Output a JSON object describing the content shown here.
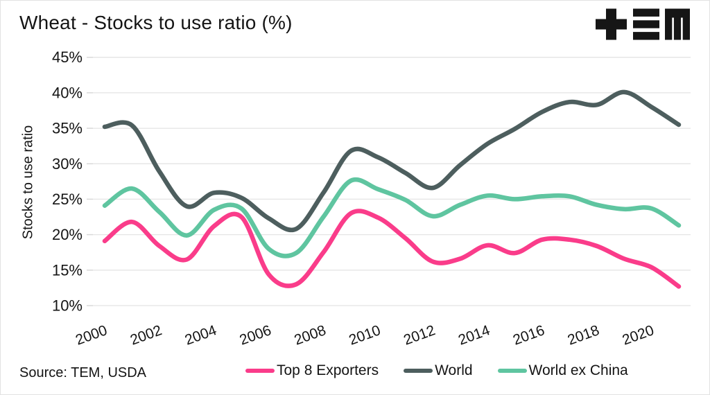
{
  "header": {
    "logo_icon": "tem-logo"
  },
  "footer": {
    "source": "Source: TEM, USDA"
  },
  "colors": {
    "background": "#ffffff",
    "frame_border": "#e2e2e2",
    "grid": "#e4e4e4",
    "tick": "#d8d8d8",
    "text": "#141414",
    "logo": "#161616"
  },
  "chart_data": {
    "type": "line",
    "title": "Wheat - Stocks to use ratio (%)",
    "ylabel": "Stocks to use ratio",
    "xlabel": "",
    "ylim": [
      10,
      45
    ],
    "grid": true,
    "legend_position": "bottom",
    "x": [
      2000,
      2001,
      2002,
      2003,
      2004,
      2005,
      2006,
      2007,
      2008,
      2009,
      2010,
      2011,
      2012,
      2013,
      2014,
      2015,
      2016,
      2017,
      2018,
      2019,
      2020,
      2021
    ],
    "x_ticks": [
      2000,
      2002,
      2004,
      2006,
      2008,
      2010,
      2012,
      2014,
      2016,
      2018,
      2020
    ],
    "x_tick_labels": [
      "2000",
      "2002",
      "2004",
      "2006",
      "2008",
      "2010",
      "2012",
      "2014",
      "2016",
      "2018",
      "2020"
    ],
    "y_ticks": [
      45,
      40,
      35,
      30,
      25,
      20,
      15,
      10
    ],
    "y_tick_labels": [
      "45%",
      "40%",
      "35%",
      "30%",
      "25%",
      "20%",
      "15%",
      "10%"
    ],
    "series": [
      {
        "name": "Top 8 Exporters",
        "color": "#fa3c8a",
        "values": [
          19.1,
          21.8,
          18.4,
          16.5,
          21.2,
          22.5,
          14.4,
          13.0,
          17.5,
          23.0,
          22.4,
          19.5,
          16.2,
          16.6,
          18.5,
          17.4,
          19.3,
          19.3,
          18.4,
          16.6,
          15.4,
          12.7
        ]
      },
      {
        "name": "World",
        "color": "#4d5e5e",
        "values": [
          35.2,
          35.4,
          28.9,
          24.0,
          25.9,
          25.2,
          22.3,
          20.8,
          25.9,
          31.8,
          30.9,
          28.7,
          26.6,
          29.8,
          32.8,
          34.9,
          37.3,
          38.7,
          38.3,
          40.1,
          38.0,
          35.5
        ]
      },
      {
        "name": "World ex China",
        "color": "#5fc5a0",
        "values": [
          24.1,
          26.5,
          23.2,
          19.9,
          23.5,
          23.7,
          18.0,
          17.4,
          22.5,
          27.6,
          26.4,
          24.9,
          22.6,
          24.2,
          25.5,
          25.0,
          25.4,
          25.4,
          24.2,
          23.6,
          23.7,
          21.3
        ]
      }
    ]
  }
}
